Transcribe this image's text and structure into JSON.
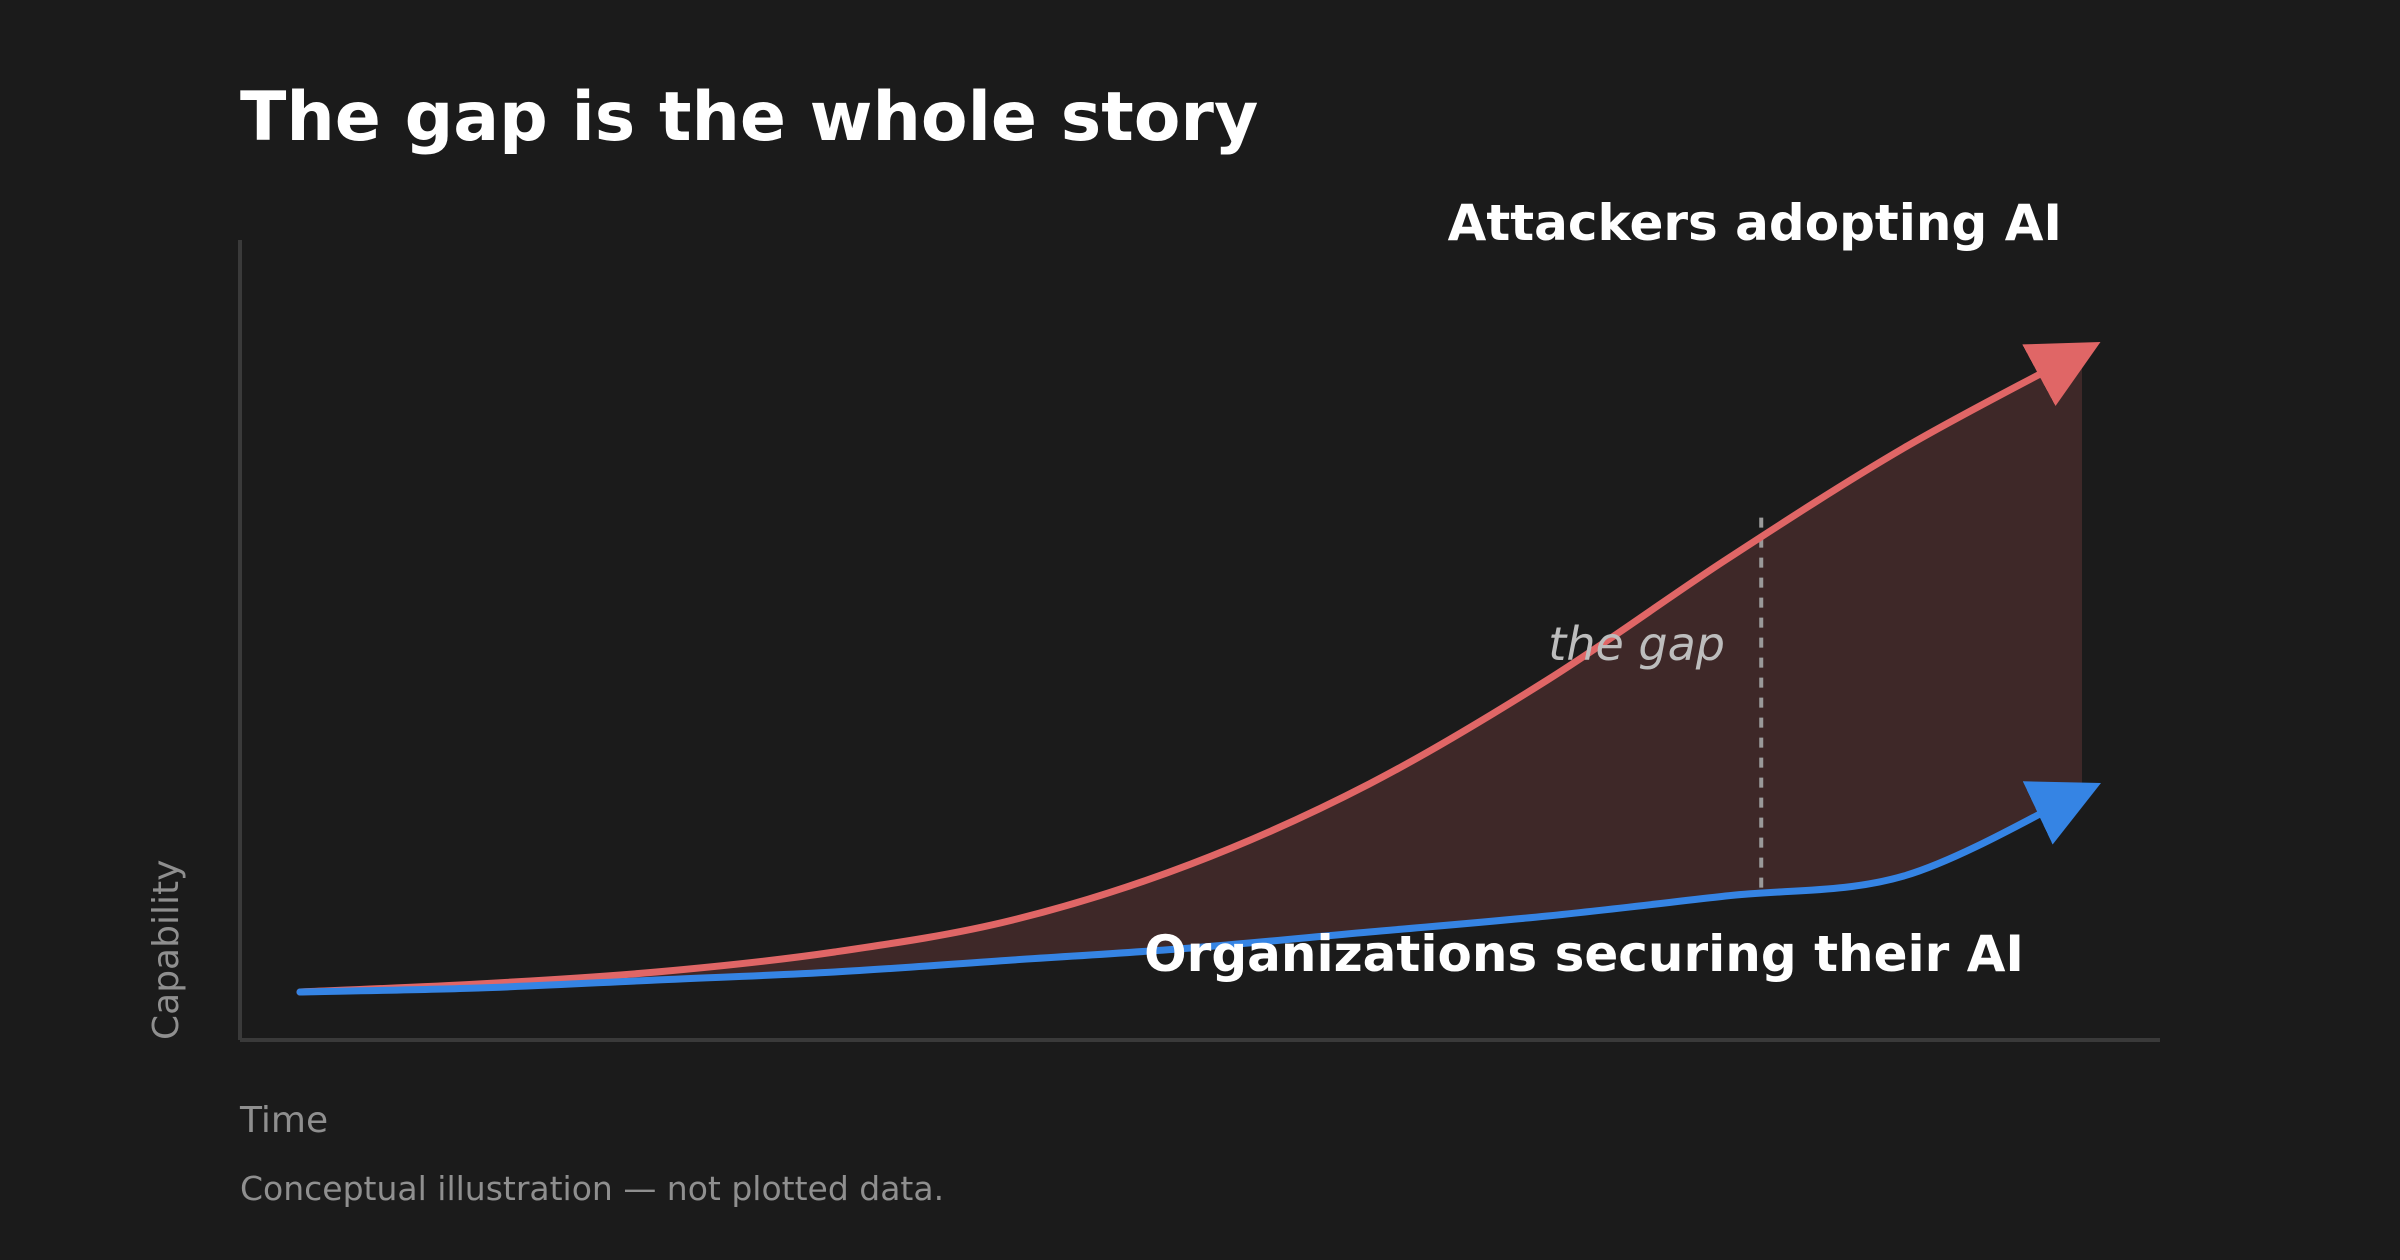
{
  "chart_data": {
    "type": "line",
    "title": "The gap is the whole story",
    "xlabel": "Time",
    "ylabel": "Capability",
    "note": "Conceptual illustration — not plotted data.",
    "xlim": [
      0,
      1
    ],
    "ylim": [
      0,
      1
    ],
    "grid": false,
    "annotation": "the gap",
    "annotation_x": 0.82,
    "series": [
      {
        "name": "Attackers adopting AI",
        "color": "#e06666",
        "arrow": true,
        "x": [
          0,
          0.1,
          0.2,
          0.3,
          0.4,
          0.5,
          0.6,
          0.7,
          0.8,
          0.9,
          1.0
        ],
        "y": [
          0.06,
          0.07,
          0.085,
          0.11,
          0.15,
          0.22,
          0.32,
          0.45,
          0.6,
          0.74,
          0.86
        ]
      },
      {
        "name": "Organizations securing their AI",
        "color": "#3584e4",
        "arrow": true,
        "x": [
          0,
          0.1,
          0.2,
          0.3,
          0.4,
          0.5,
          0.6,
          0.7,
          0.8,
          0.9,
          1.0
        ],
        "y": [
          0.06,
          0.065,
          0.075,
          0.085,
          0.1,
          0.115,
          0.135,
          0.155,
          0.18,
          0.205,
          0.31
        ]
      }
    ],
    "fill_between": {
      "color": "#e06666",
      "opacity": 0.18
    },
    "axis_color": "#3a3a3a"
  }
}
